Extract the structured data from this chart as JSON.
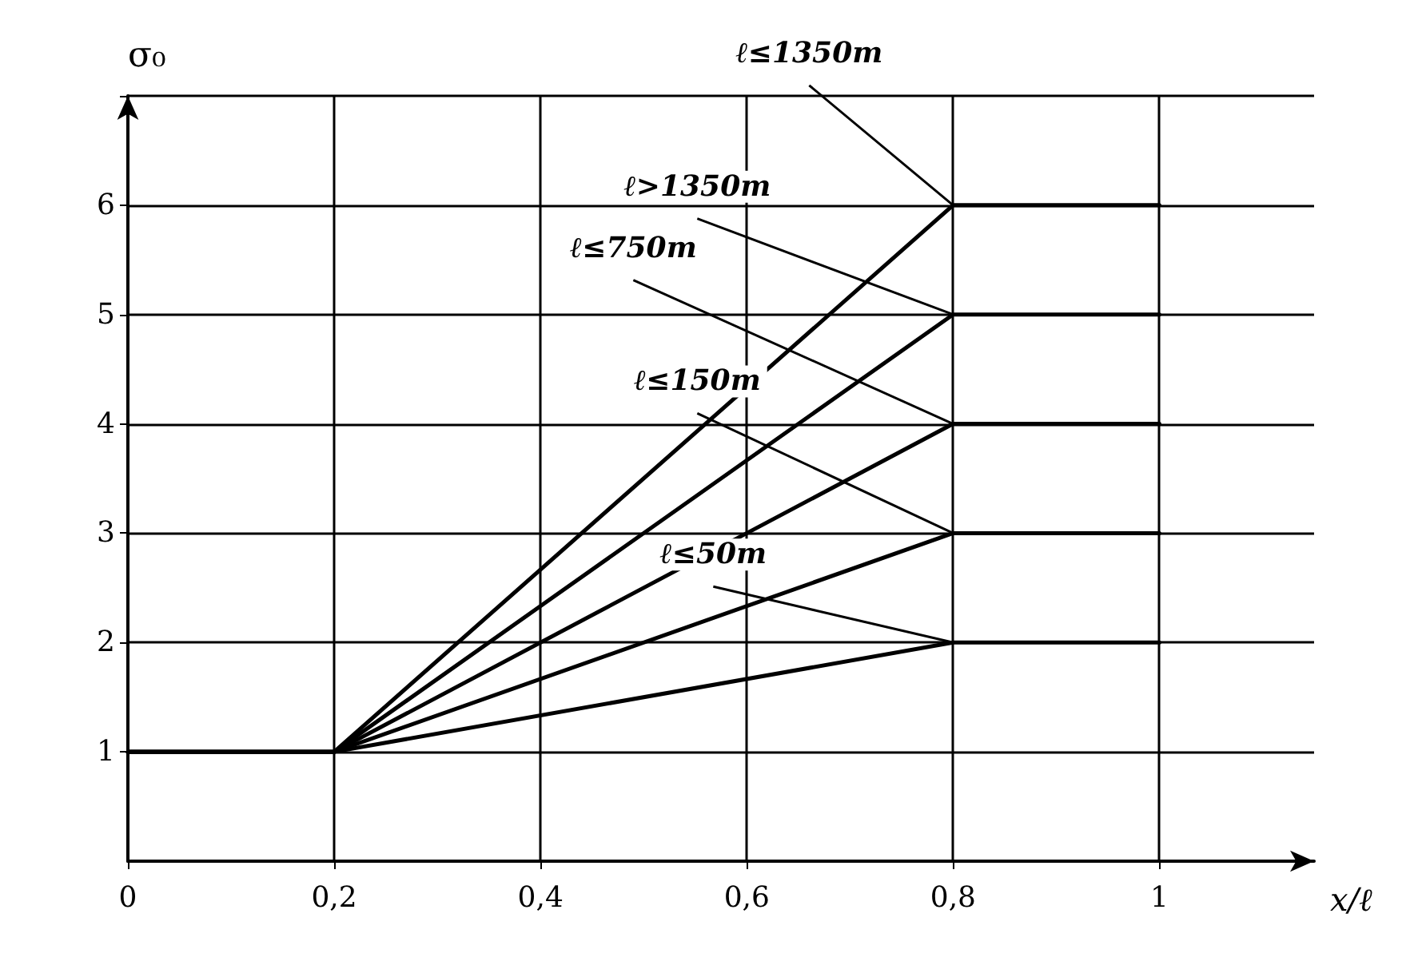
{
  "chart_data": {
    "type": "line",
    "xlabel": "x/ℓ",
    "ylabel": "σ₀",
    "xlim": [
      0,
      1.15
    ],
    "xticks": [
      0,
      {
        "value": 0.2,
        "label": "0,2"
      },
      {
        "value": 0.4,
        "label": "0,4"
      },
      {
        "value": 0.6,
        "label": "0,6"
      },
      {
        "value": 0.8,
        "label": "0,8"
      },
      1
    ],
    "ylim": [
      0,
      7
    ],
    "yticks": [
      1,
      2,
      3,
      4,
      5,
      6,
      {
        "value": 7,
        "label": null
      }
    ],
    "grid": true,
    "marker": "none",
    "line_style": "solid",
    "series": [
      {
        "name": "ℓ≤50m",
        "color": "#000000",
        "x": [
          0,
          0.2,
          0.8,
          1
        ],
        "values": [
          1,
          1,
          2,
          2
        ]
      },
      {
        "name": "ℓ≤150m",
        "color": "#000000",
        "x": [
          0,
          0.2,
          0.8,
          1
        ],
        "values": [
          1,
          1,
          3,
          3
        ]
      },
      {
        "name": "ℓ≤750m",
        "color": "#000000",
        "x": [
          0,
          0.2,
          0.8,
          1
        ],
        "values": [
          1,
          1,
          4,
          4
        ]
      },
      {
        "name": "ℓ>1350m",
        "color": "#000000",
        "x": [
          0,
          0.2,
          0.8,
          1
        ],
        "values": [
          1,
          1,
          5,
          5
        ]
      },
      {
        "name": "ℓ≤1350m",
        "color": "#000000",
        "x": [
          0,
          0.2,
          0.8,
          1
        ],
        "values": [
          1,
          1,
          6,
          6
        ]
      }
    ]
  }
}
